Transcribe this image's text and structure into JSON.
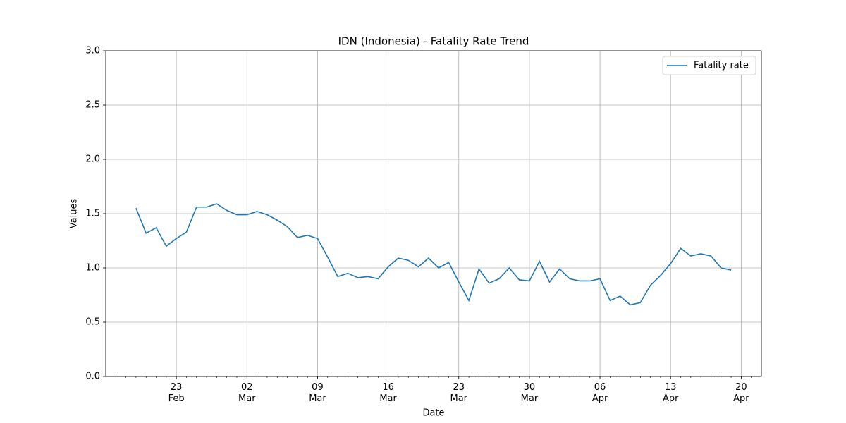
{
  "chart_data": {
    "type": "line",
    "title": "IDN (Indonesia) - Fatality Rate Trend",
    "xlabel": "Date",
    "ylabel": "Values",
    "x": [
      "02-19",
      "02-20",
      "02-21",
      "02-22",
      "02-23",
      "02-24",
      "02-25",
      "02-26",
      "02-27",
      "02-28",
      "03-01",
      "03-02",
      "03-03",
      "03-04",
      "03-05",
      "03-06",
      "03-07",
      "03-08",
      "03-09",
      "03-10",
      "03-11",
      "03-12",
      "03-13",
      "03-14",
      "03-15",
      "03-16",
      "03-17",
      "03-18",
      "03-19",
      "03-20",
      "03-21",
      "03-22",
      "03-23",
      "03-24",
      "03-25",
      "03-26",
      "03-27",
      "03-28",
      "03-29",
      "03-30",
      "03-31",
      "04-01",
      "04-02",
      "04-03",
      "04-04",
      "04-05",
      "04-06",
      "04-07",
      "04-08",
      "04-09",
      "04-10",
      "04-11",
      "04-12",
      "04-13",
      "04-14",
      "04-15",
      "04-16",
      "04-17",
      "04-18",
      "04-19"
    ],
    "series": [
      {
        "name": "Fatality rate",
        "color": "#1f77b4",
        "values": [
          1.55,
          1.32,
          1.37,
          1.2,
          1.27,
          1.33,
          1.56,
          1.56,
          1.59,
          1.53,
          1.49,
          1.49,
          1.52,
          1.49,
          1.44,
          1.38,
          1.28,
          1.3,
          1.27,
          1.1,
          0.92,
          0.95,
          0.91,
          0.92,
          0.9,
          1.01,
          1.09,
          1.07,
          1.01,
          1.09,
          1.0,
          1.05,
          0.87,
          0.7,
          0.99,
          0.86,
          0.9,
          1.0,
          0.89,
          0.88,
          1.06,
          0.87,
          0.99,
          0.9,
          0.88,
          0.88,
          0.9,
          0.7,
          0.74,
          0.66,
          0.68,
          0.84,
          0.93,
          1.04,
          1.18,
          1.11,
          1.13,
          1.11,
          1.0,
          0.98
        ]
      }
    ],
    "xlim": [
      "02-16",
      "04-22"
    ],
    "xticks": [
      {
        "value": "02-23",
        "label": "23\nFeb"
      },
      {
        "value": "03-02",
        "label": "02\nMar"
      },
      {
        "value": "03-09",
        "label": "09\nMar"
      },
      {
        "value": "03-16",
        "label": "16\nMar"
      },
      {
        "value": "03-23",
        "label": "23\nMar"
      },
      {
        "value": "03-30",
        "label": "30\nMar"
      },
      {
        "value": "04-06",
        "label": "06\nApr"
      },
      {
        "value": "04-13",
        "label": "13\nApr"
      },
      {
        "value": "04-20",
        "label": "20\nApr"
      }
    ],
    "ylim": [
      0,
      3
    ],
    "yticks": [
      {
        "value": 0,
        "label": "0.0"
      },
      0.5,
      {
        "value": 1,
        "label": "1.0"
      },
      1.5,
      {
        "value": 2,
        "label": "2.0"
      },
      2.5,
      {
        "value": 3,
        "label": "3.0"
      }
    ],
    "grid": true,
    "legend": "upper right"
  }
}
